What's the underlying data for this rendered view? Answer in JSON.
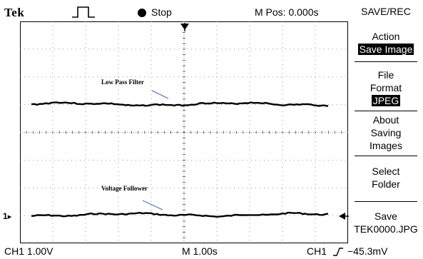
{
  "header": {
    "brand": "Tek",
    "run_state": "Stop",
    "position": "M Pos: 0.000s"
  },
  "screen": {
    "annotations": {
      "low_pass": "Low Pass Filter",
      "follower": "Voltage Follower"
    },
    "channel_marker": "1",
    "colors": {
      "trace": "#000000",
      "annotation": "#4a6fd6",
      "grid": "#7a7a7a"
    }
  },
  "menu": {
    "title": "SAVE/REC",
    "items": [
      {
        "label": "Action",
        "value": "Save Image"
      },
      {
        "label": "File Format",
        "value": "JPEG"
      },
      {
        "label": "About Saving Images"
      },
      {
        "label": "Select Folder"
      },
      {
        "label": "Save",
        "value": "TEK0000.JPG"
      }
    ]
  },
  "status": {
    "ch_scale": "CH1  1.00V",
    "timebase": "M 1.00s",
    "trigger_source": "CH1",
    "trigger_level": "−45.3mV"
  }
}
